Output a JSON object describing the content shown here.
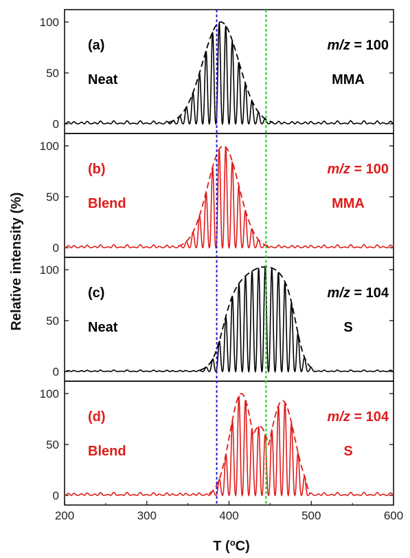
{
  "chart_data": {
    "type": "line",
    "xlabel_main": "T (",
    "xlabel_sup": "o",
    "xlabel_unit": "C)",
    "ylabel": "Relative intensity (%)",
    "xlim": [
      200,
      600
    ],
    "x_ticks": [
      "200",
      "300",
      "400",
      "500",
      "600"
    ],
    "y_ticks": [
      "0",
      "50",
      "100"
    ],
    "ylim": [
      0,
      100
    ],
    "vertical_lines": [
      {
        "x": 385,
        "color": "#2222cc",
        "style": "dotted"
      },
      {
        "x": 445,
        "color": "#22cc22",
        "style": "dotted"
      }
    ],
    "grid": false,
    "panels": [
      {
        "label": "(a)",
        "sample": "Neat",
        "mz_prefix": "m/z",
        "mz_suffix": " = 100",
        "species": "MMA",
        "color": "#000000",
        "envelope": {
          "type": "single",
          "center": 390,
          "sigma": 22,
          "amp": 100
        },
        "peak_interval": 8.0,
        "baseline": 2
      },
      {
        "label": "(b)",
        "sample": "Blend",
        "mz_prefix": "m/z",
        "mz_suffix": " = 100",
        "species": "MMA",
        "color": "#e01b1b",
        "envelope": {
          "type": "single",
          "center": 393,
          "sigma": 19,
          "amp": 100
        },
        "peak_interval": 8.0,
        "baseline": 2
      },
      {
        "label": "(c)",
        "sample": "Neat",
        "mz_prefix": "m/z",
        "mz_suffix": " = 104",
        "species": "S",
        "color": "#000000",
        "envelope": {
          "type": "plateau",
          "start": 380,
          "end": 490,
          "peak": 445,
          "amp": 100
        },
        "peak_interval": 8.0,
        "baseline": 1
      },
      {
        "label": "(d)",
        "sample": "Blend",
        "mz_prefix": "m/z",
        "mz_suffix": " = 104",
        "species": "S",
        "color": "#e01b1b",
        "envelope": {
          "type": "double",
          "c1": 415,
          "s1": 14,
          "a1": 100,
          "c2": 465,
          "s2": 15,
          "a2": 93,
          "start": 378,
          "end": 492
        },
        "peak_interval": 8.0,
        "baseline": 2
      }
    ]
  }
}
